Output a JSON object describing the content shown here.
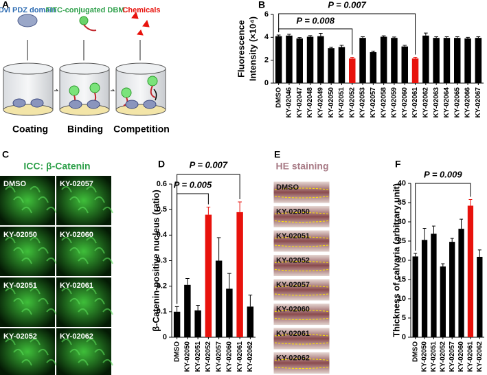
{
  "panel_labels": [
    "A",
    "B",
    "C",
    "D",
    "E",
    "F"
  ],
  "schematic": {
    "labels": [
      "Dvl PDZ domain",
      "FITC-conjugated DBM",
      "Chemicals"
    ],
    "steps": [
      "Coating",
      "Binding",
      "Competition"
    ]
  },
  "icc": {
    "title": "ICC: β-Catenin",
    "images": [
      "DMSO",
      "KY-02057",
      "KY-02050",
      "KY-02060",
      "KY-02051",
      "KY-02061",
      "KY-02052",
      "KY-02062"
    ]
  },
  "he": {
    "title": "HE staining",
    "images": [
      "DMSO",
      "KY-02050",
      "KY-02051",
      "KY-02052",
      "KY-02057",
      "KY-02060",
      "KY-02061",
      "KY-02062"
    ]
  },
  "chart_data": [
    {
      "type": "bar",
      "y_label": [
        "Fluorescence",
        "Intensity (×10⁴)"
      ],
      "categories": [
        "DMSO",
        "KY-02046",
        "KY-02047",
        "KY-02048",
        "KY-02049",
        "KY-02050",
        "KY-02051",
        "KY-02052",
        "KY-02053",
        "KY-02057",
        "KY-02058",
        "KY-02059",
        "KY-02060",
        "KY-02061",
        "KY-02062",
        "KY-02063",
        "KY-02064",
        "KY-02065",
        "KY-02066",
        "KY-02067"
      ],
      "values": [
        4.1,
        4.15,
        3.9,
        4.05,
        4.1,
        3.05,
        3.15,
        2.15,
        3.95,
        2.7,
        4.05,
        3.95,
        3.2,
        2.15,
        4.15,
        3.95,
        3.95,
        3.95,
        3.9,
        3.95
      ],
      "errors": [
        0.1,
        0.12,
        0.08,
        0.1,
        0.25,
        0.08,
        0.15,
        0.1,
        0.1,
        0.1,
        0.08,
        0.08,
        0.1,
        0.1,
        0.22,
        0.1,
        0.1,
        0.1,
        0.1,
        0.1
      ],
      "colors": [
        "#000",
        "#000",
        "#000",
        "#000",
        "#000",
        "#000",
        "#000",
        "#e8120c",
        "#000",
        "#000",
        "#000",
        "#000",
        "#000",
        "#e8120c",
        "#000",
        "#000",
        "#000",
        "#000",
        "#000",
        "#000"
      ],
      "ylim": [
        0,
        6
      ],
      "yticks": [
        0,
        2,
        4,
        6
      ],
      "annotations": [
        "P = 0.007",
        "P = 0.008"
      ]
    },
    {
      "type": "bar",
      "y_label": [
        "β-Catenin-positive nucleus (ratio)"
      ],
      "categories": [
        "DMSO",
        "KY-02050",
        "KY-02051",
        "KY-02052",
        "KY-02057",
        "KY-02060",
        "KY-02061",
        "KY-02062"
      ],
      "values": [
        0.1,
        0.205,
        0.105,
        0.48,
        0.3,
        0.19,
        0.49,
        0.12
      ],
      "errors": [
        0.02,
        0.025,
        0.02,
        0.03,
        0.09,
        0.06,
        0.04,
        0.045
      ],
      "colors": [
        "#000",
        "#000",
        "#000",
        "#e8120c",
        "#000",
        "#000",
        "#e8120c",
        "#000"
      ],
      "ylim": [
        0,
        0.6
      ],
      "yticks": [
        0,
        0.1,
        0.2,
        0.3,
        0.4,
        0.5,
        0.6
      ],
      "annotations": [
        "P = 0.007",
        "P = 0.005"
      ]
    },
    {
      "type": "bar",
      "y_label": [
        "Thickness of calvaria (arbitrary unit)"
      ],
      "categories": [
        "DMSO",
        "KY-02050",
        "KY-02051",
        "KY-02052",
        "KY-02057",
        "KY-02060",
        "KY-02061",
        "KY-02062"
      ],
      "values": [
        21,
        25.3,
        26.9,
        18.4,
        24.8,
        28.2,
        34.2,
        20.9
      ],
      "errors": [
        0.8,
        3,
        2,
        0.7,
        0.9,
        2.5,
        1.6,
        1.8
      ],
      "colors": [
        "#000",
        "#000",
        "#000",
        "#000",
        "#000",
        "#000",
        "#e8120c",
        "#000"
      ],
      "ylim": [
        0,
        40
      ],
      "yticks": [
        0,
        5,
        10,
        15,
        20,
        25,
        30,
        35,
        40
      ],
      "annotations": [
        "P = 0.009"
      ]
    }
  ]
}
